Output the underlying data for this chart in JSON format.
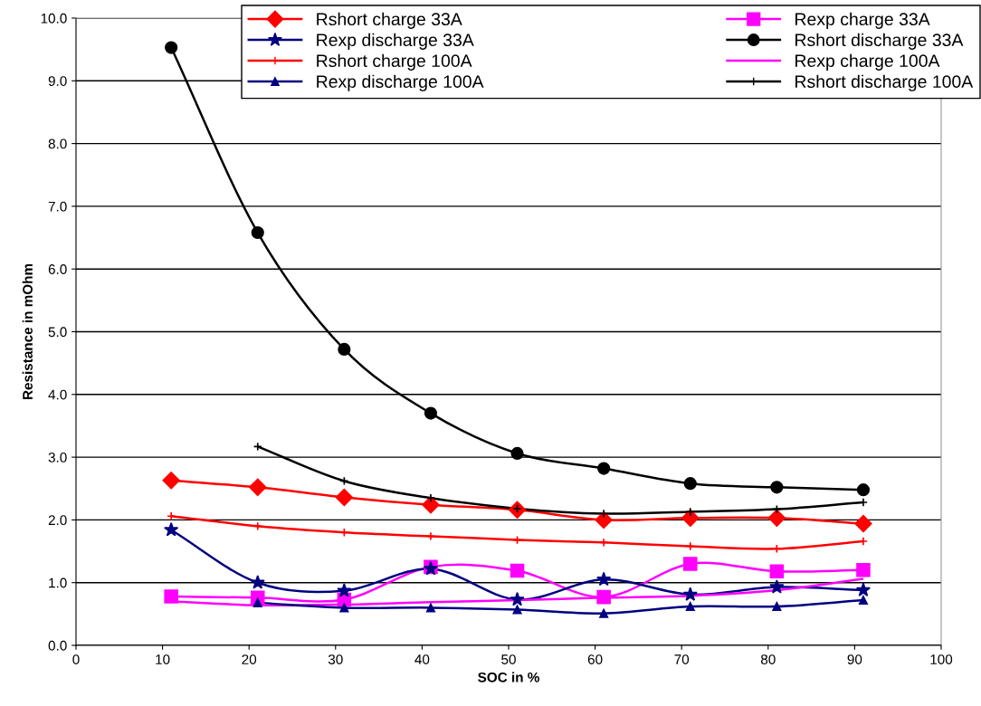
{
  "chart_data": {
    "type": "line",
    "xlabel": "SOC in %",
    "ylabel": "Resistance in mOhm",
    "x": [
      11,
      21,
      31,
      41,
      51,
      61,
      71,
      81,
      91
    ],
    "series": [
      {
        "name": "Rshort charge 33A",
        "color": "#ff0000",
        "marker": "diamond",
        "values": [
          2.63,
          2.52,
          2.36,
          2.24,
          2.16,
          2.0,
          2.03,
          2.03,
          1.94
        ]
      },
      {
        "name": "Rexp charge 33A",
        "color": "#ff00ff",
        "marker": "square",
        "values": [
          0.78,
          0.76,
          0.73,
          1.25,
          1.19,
          0.77,
          1.3,
          1.18,
          1.2
        ]
      },
      {
        "name": "Rexp discharge 33A",
        "color": "#000080",
        "marker": "star",
        "values": [
          1.84,
          1.0,
          0.87,
          1.22,
          0.73,
          1.05,
          0.81,
          0.93,
          0.88
        ]
      },
      {
        "name": "Rshort discharge 33A",
        "color": "#000000",
        "marker": "circle",
        "values": [
          9.53,
          6.58,
          4.72,
          3.7,
          3.06,
          2.82,
          2.58,
          2.52,
          2.48
        ]
      },
      {
        "name": "Rshort charge 100A",
        "color": "#ff0000",
        "marker": "cross",
        "values": [
          2.06,
          1.9,
          1.8,
          1.74,
          1.68,
          1.64,
          1.58,
          1.54,
          1.66
        ]
      },
      {
        "name": "Rexp charge 100A",
        "color": "#ff00ff",
        "marker": "none",
        "values": [
          0.7,
          0.64,
          0.65,
          0.69,
          0.72,
          0.76,
          0.79,
          0.88,
          1.06
        ]
      },
      {
        "name": "Rexp discharge 100A",
        "color": "#000080",
        "marker": "triangle",
        "values": [
          null,
          0.68,
          0.6,
          0.6,
          0.57,
          0.51,
          0.62,
          0.62,
          0.72
        ]
      },
      {
        "name": "Rshort discharge 100A",
        "color": "#000000",
        "marker": "cross",
        "values": [
          null,
          3.17,
          2.62,
          2.35,
          2.18,
          2.1,
          2.13,
          2.17,
          2.28
        ]
      }
    ],
    "xlim": [
      0,
      100
    ],
    "xticks": [
      0,
      10,
      20,
      30,
      40,
      50,
      60,
      70,
      80,
      90,
      100
    ],
    "ylim": [
      0,
      10
    ],
    "yticks": [
      {
        "value": 0,
        "label": "0.0"
      },
      {
        "value": 1,
        "label": "1.0"
      },
      {
        "value": 2,
        "label": "2.0"
      },
      {
        "value": 3,
        "label": "3.0"
      },
      {
        "value": 4,
        "label": "4.0"
      },
      {
        "value": 5,
        "label": "5.0"
      },
      {
        "value": 6,
        "label": "6.0"
      },
      {
        "value": 7,
        "label": "7.0"
      },
      {
        "value": 8,
        "label": "8.0"
      },
      {
        "value": 9,
        "label": "9.0"
      },
      {
        "value": 10,
        "label": "10.0"
      }
    ],
    "grid": "y",
    "legend": "top right",
    "line_style": "solid"
  }
}
